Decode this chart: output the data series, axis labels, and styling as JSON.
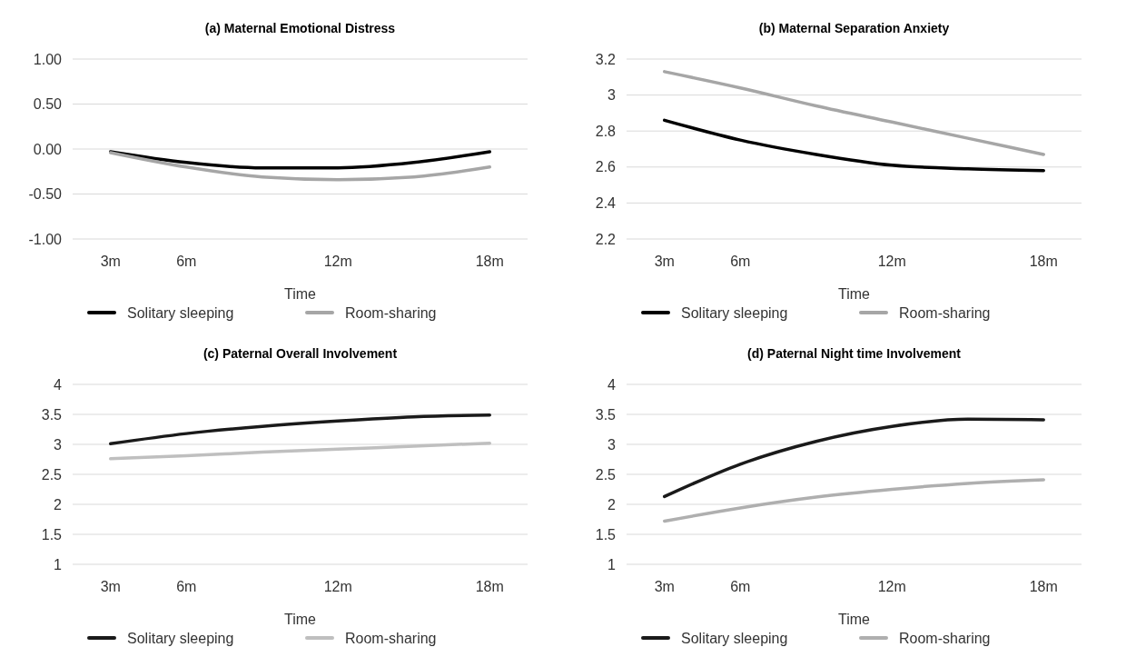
{
  "chart_data": [
    {
      "type": "line",
      "title": "(a) Maternal Emotional Distress",
      "xlabel": "Time",
      "x": [
        3,
        6,
        9,
        12,
        15,
        18
      ],
      "xlim": [
        1.5,
        19.5
      ],
      "xticks": [
        {
          "value": 3,
          "label": "3m"
        },
        {
          "value": 6,
          "label": "6m"
        },
        {
          "value": 12,
          "label": "12m"
        },
        {
          "value": 18,
          "label": "18m"
        }
      ],
      "ylim": [
        -1,
        1
      ],
      "yticks": [
        {
          "value": -1,
          "label": "-1.00"
        },
        {
          "value": -0.5,
          "label": "-0.50"
        },
        {
          "value": 0,
          "label": "0.00"
        },
        {
          "value": 0.5,
          "label": "0.50"
        },
        {
          "value": 1,
          "label": "1.00"
        }
      ],
      "grid": "y",
      "legend": "bottom",
      "series": [
        {
          "name": "Solitary sleeping",
          "color": "#000000",
          "values": [
            -0.03,
            -0.15,
            -0.21,
            -0.21,
            -0.15,
            -0.03
          ]
        },
        {
          "name": "Room-sharing",
          "color": "#a6a6a6",
          "values": [
            -0.04,
            -0.2,
            -0.31,
            -0.34,
            -0.31,
            -0.2
          ]
        }
      ]
    },
    {
      "type": "line",
      "title": "(b)  Maternal Separation Anxiety",
      "xlabel": "Time",
      "x": [
        3,
        6,
        9,
        12,
        15,
        18
      ],
      "xlim": [
        1.5,
        19.5
      ],
      "xticks": [
        {
          "value": 3,
          "label": "3m"
        },
        {
          "value": 6,
          "label": "6m"
        },
        {
          "value": 12,
          "label": "12m"
        },
        {
          "value": 18,
          "label": "18m"
        }
      ],
      "ylim": [
        2.2,
        3.2
      ],
      "yticks": [
        2.2,
        2.4,
        2.6,
        2.8,
        3,
        3.2
      ],
      "grid": "y",
      "legend": "bottom",
      "series": [
        {
          "name": "Solitary sleeping",
          "color": "#000000",
          "values": [
            2.86,
            2.75,
            2.67,
            2.61,
            2.59,
            2.58
          ]
        },
        {
          "name": "Room-sharing",
          "color": "#a6a6a6",
          "values": [
            3.13,
            3.04,
            2.94,
            2.85,
            2.76,
            2.67
          ]
        }
      ]
    },
    {
      "type": "line",
      "title": "(c)  Paternal Overall Involvement",
      "xlabel": "Time",
      "x": [
        3,
        6,
        9,
        12,
        15,
        18
      ],
      "xlim": [
        1.5,
        19.5
      ],
      "xticks": [
        {
          "value": 3,
          "label": "3m"
        },
        {
          "value": 6,
          "label": "6m"
        },
        {
          "value": 12,
          "label": "12m"
        },
        {
          "value": 18,
          "label": "18m"
        }
      ],
      "ylim": [
        1,
        4
      ],
      "yticks": [
        1,
        1.5,
        2,
        2.5,
        3,
        3.5,
        4
      ],
      "grid": "y",
      "legend": "bottom",
      "series": [
        {
          "name": "Solitary sleeping",
          "color": "#1a1a1a",
          "values": [
            3.01,
            3.18,
            3.3,
            3.39,
            3.46,
            3.49
          ]
        },
        {
          "name": "Room-sharing",
          "color": "#bfbfbf",
          "values": [
            2.76,
            2.81,
            2.87,
            2.92,
            2.97,
            3.02
          ]
        }
      ]
    },
    {
      "type": "line",
      "title": "(d)  Paternal Night time Involvement",
      "xlabel": "Time",
      "x": [
        3,
        6,
        9,
        12,
        15,
        18
      ],
      "xlim": [
        1.5,
        19.5
      ],
      "xticks": [
        {
          "value": 3,
          "label": "3m"
        },
        {
          "value": 6,
          "label": "6m"
        },
        {
          "value": 12,
          "label": "12m"
        },
        {
          "value": 18,
          "label": "18m"
        }
      ],
      "ylim": [
        1,
        4
      ],
      "yticks": [
        1,
        1.5,
        2,
        2.5,
        3,
        3.5,
        4
      ],
      "grid": "y",
      "legend": "bottom",
      "series": [
        {
          "name": "Solitary sleeping",
          "color": "#1a1a1a",
          "values": [
            2.13,
            2.67,
            3.05,
            3.3,
            3.42,
            3.41
          ]
        },
        {
          "name": "Room-sharing",
          "color": "#afafaf",
          "values": [
            1.72,
            1.94,
            2.12,
            2.25,
            2.35,
            2.41
          ]
        }
      ]
    }
  ]
}
